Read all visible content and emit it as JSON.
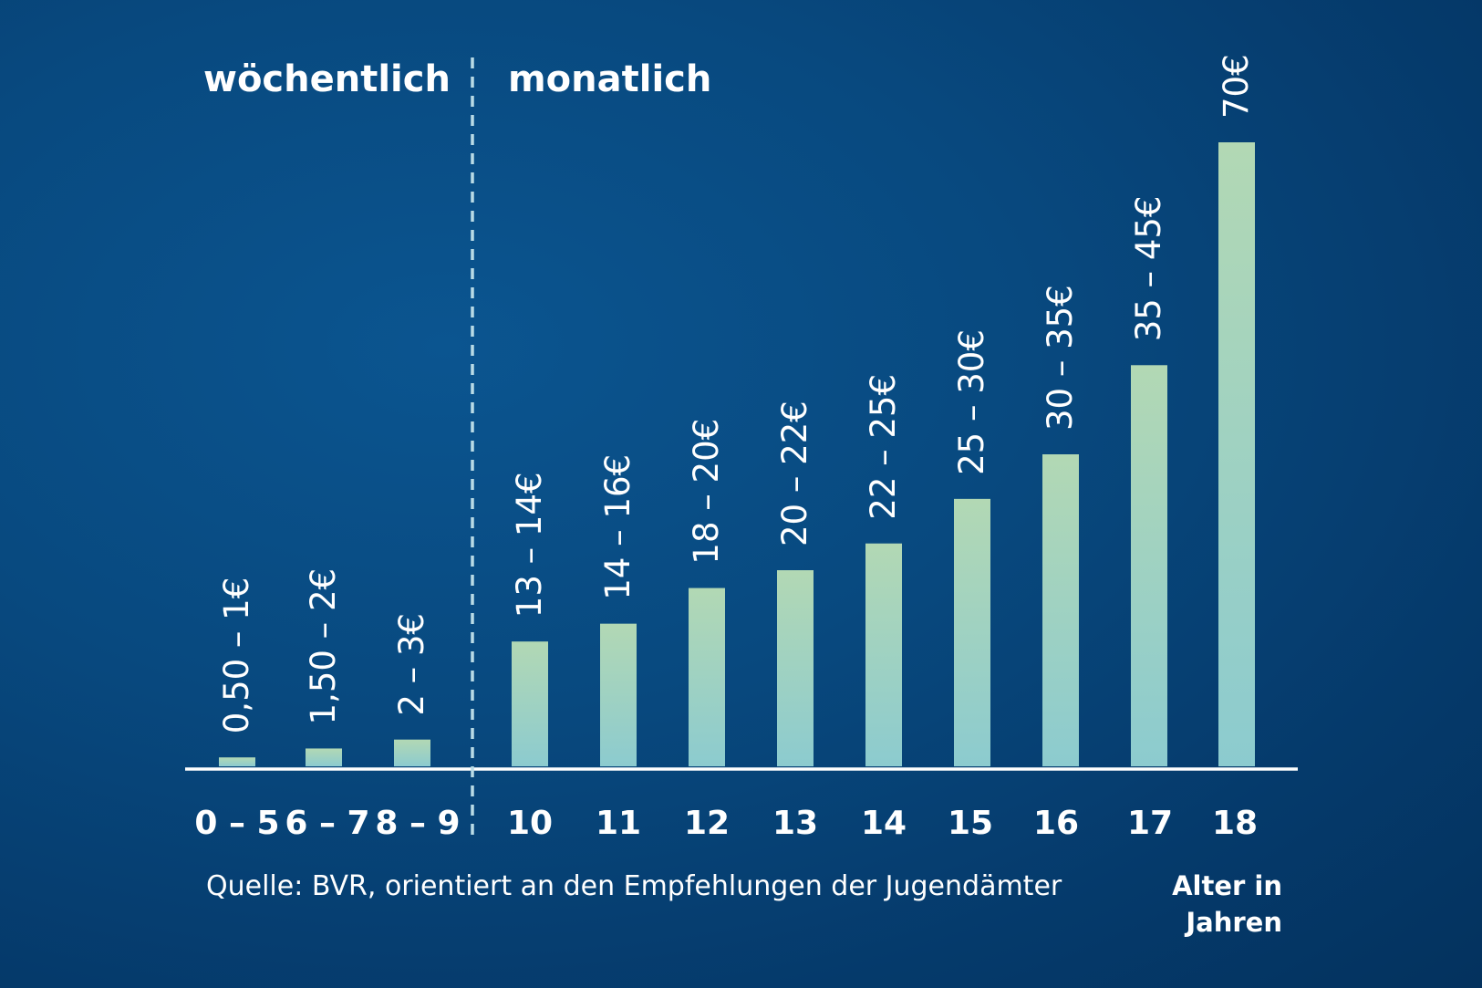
{
  "colors": {
    "background": "#06427a",
    "bar_top": "#b2d8b4",
    "bar_bottom": "#8ccbcf",
    "text": "#ffffff",
    "axis": "#ffffff"
  },
  "chart_data": {
    "type": "bar",
    "title": "",
    "sections": [
      {
        "label": "wöchentlich",
        "categories": [
          "0 – 5",
          "6 – 7",
          "8 – 9"
        ]
      },
      {
        "label": "monatlich",
        "categories": [
          "10",
          "11",
          "12",
          "13",
          "14",
          "15",
          "16",
          "17",
          "18"
        ]
      }
    ],
    "categories": [
      "0 – 5",
      "6 – 7",
      "8 – 9",
      "10",
      "11",
      "12",
      "13",
      "14",
      "15",
      "16",
      "17",
      "18"
    ],
    "values": [
      1,
      2,
      3,
      14,
      16,
      20,
      22,
      25,
      30,
      35,
      45,
      70
    ],
    "data_labels": [
      "0,50 – 1€",
      "1,50 – 2€",
      "2 – 3€",
      "13 – 14€",
      "14 – 16€",
      "18 – 20€",
      "20 – 22€",
      "22 – 25€",
      "25 – 30€",
      "30 – 35€",
      "35 – 45€",
      "70€"
    ],
    "xlabel": "Alter in Jahren",
    "xlabel_lines": [
      "Alter in",
      "Jahren"
    ],
    "ylabel": "",
    "unit": "€",
    "ylim": [
      0,
      70
    ],
    "grid": false,
    "legend": "none",
    "source": "Quelle: BVR, orientiert an den Empfehlungen der Jugendämter"
  }
}
